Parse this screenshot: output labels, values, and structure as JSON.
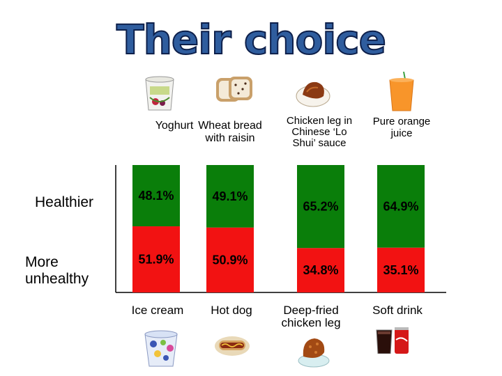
{
  "slide": {
    "title": "Their choice"
  },
  "row_labels": {
    "healthier": "Healthier",
    "unhealthy": "More\nunhealthy"
  },
  "colors": {
    "healthier": "#0a7e0a",
    "unhealthy": "#f21212",
    "title": "#2f5d9e"
  },
  "chart_data": {
    "type": "bar",
    "stacked": true,
    "orientation": "vertical",
    "title": "Their choice",
    "categories": [
      "Ice cream",
      "Hot dog",
      "Deep-fried\nchicken leg",
      "Soft drink"
    ],
    "healthier_alternatives": [
      "Yoghurt",
      "Wheat bread\nwith raisin",
      "Chicken leg in\nChinese ‘Lo\nShui’ sauce",
      "Pure orange\njuice"
    ],
    "series": [
      {
        "name": "More unhealthy",
        "color": "#f21212",
        "values": [
          51.9,
          50.9,
          34.8,
          35.1
        ],
        "labels": [
          "51.9%",
          "50.9%",
          "34.8%",
          "35.1%"
        ]
      },
      {
        "name": "Healthier",
        "color": "#0a7e0a",
        "values": [
          48.1,
          49.1,
          65.2,
          64.9
        ],
        "labels": [
          "48.1%",
          "49.1%",
          "65.2%",
          "64.9%"
        ]
      }
    ],
    "ylim": [
      0,
      100
    ],
    "xlabel": "",
    "ylabel": ""
  },
  "icons": {
    "top": [
      "yoghurt-icon",
      "bread-icon",
      "chicken-dish-icon",
      "orange-juice-icon"
    ],
    "bottom": [
      "ice-cream-icon",
      "hot-dog-icon",
      "fried-chicken-icon",
      "soft-drink-icon"
    ]
  }
}
